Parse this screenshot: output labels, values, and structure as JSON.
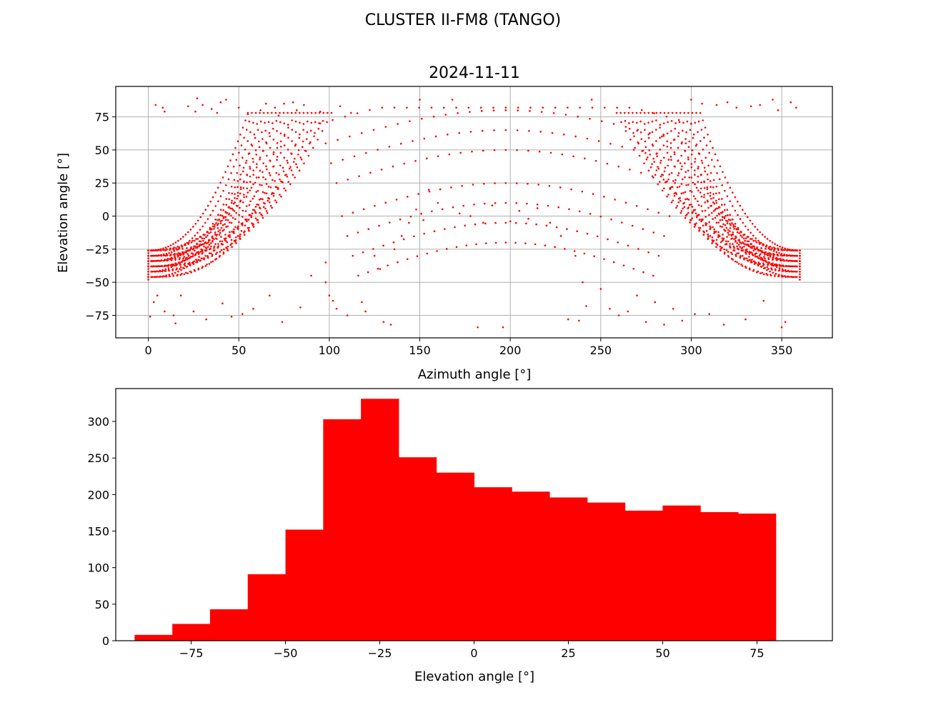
{
  "figure": {
    "suptitle": "CLUSTER II-FM8 (TANGO)"
  },
  "chart_data": [
    {
      "type": "scatter",
      "title": "2024-11-11",
      "xlabel": "Azimuth angle [°]",
      "ylabel": "Elevation angle [°]",
      "xlim": [
        -18,
        378
      ],
      "ylim": [
        -92,
        98
      ],
      "xticks": [
        0,
        50,
        100,
        150,
        200,
        250,
        300,
        350
      ],
      "yticks": [
        -75,
        -50,
        -25,
        0,
        25,
        50,
        75
      ],
      "xtick_labels": [
        "0",
        "50",
        "100",
        "150",
        "200",
        "250",
        "300",
        "350"
      ],
      "ytick_labels": [
        "−75",
        "−50",
        "−25",
        "0",
        "25",
        "50",
        "75"
      ],
      "grid": true,
      "marker_color": "#ff0000",
      "series": [
        {
          "points": [
            [
              0,
              -28
            ],
            [
              0,
              -32
            ],
            [
              0,
              -36
            ],
            [
              0,
              -40
            ],
            [
              0,
              -44
            ],
            [
              0,
              -48
            ],
            [
              1,
              -76
            ],
            [
              3,
              -65
            ],
            [
              4,
              84
            ],
            [
              5,
              -60
            ],
            [
              8,
              82
            ],
            [
              9,
              79
            ],
            [
              9,
              -72
            ],
            [
              14,
              -75
            ],
            [
              15,
              -81
            ],
            [
              18,
              -60
            ],
            [
              22,
              83
            ],
            [
              25,
              -72
            ],
            [
              26,
              79
            ],
            [
              27,
              89
            ],
            [
              30,
              84
            ],
            [
              32,
              -78
            ],
            [
              35,
              81
            ],
            [
              38,
              78
            ],
            [
              40,
              86
            ],
            [
              41,
              -66
            ],
            [
              43,
              88
            ],
            [
              46,
              -76
            ],
            [
              50,
              82
            ],
            [
              52,
              -74
            ],
            [
              55,
              77
            ],
            [
              58,
              -70
            ],
            [
              62,
              80
            ],
            [
              65,
              85
            ],
            [
              67,
              -60
            ],
            [
              70,
              82
            ],
            [
              72,
              76
            ],
            [
              74,
              -80
            ],
            [
              75,
              85
            ],
            [
              80,
              86
            ],
            [
              82,
              80
            ],
            [
              84,
              -69
            ],
            [
              86,
              84
            ],
            [
              90,
              -45
            ],
            [
              95,
              79
            ],
            [
              98,
              -35
            ],
            [
              98,
              -50
            ],
            [
              100,
              -60
            ],
            [
              102,
              -64
            ],
            [
              104,
              -70
            ],
            [
              106,
              83
            ],
            [
              110,
              -75
            ],
            [
              112,
              78
            ],
            [
              118,
              -65
            ],
            [
              120,
              -72
            ],
            [
              125,
              -30
            ],
            [
              128,
              -40
            ],
            [
              130,
              -80
            ],
            [
              134,
              -82
            ],
            [
              136,
              -25
            ],
            [
              140,
              -15
            ],
            [
              144,
              -5
            ],
            [
              148,
              5
            ],
            [
              150,
              88
            ],
            [
              152,
              -3
            ],
            [
              155,
              20
            ],
            [
              160,
              10
            ],
            [
              168,
              88
            ],
            [
              172,
              2
            ],
            [
              178,
              0
            ],
            [
              182,
              -84
            ],
            [
              185,
              -5
            ],
            [
              190,
              8
            ],
            [
              196,
              -84
            ],
            [
              200,
              -4
            ],
            [
              205,
              4
            ],
            [
              210,
              -2
            ],
            [
              215,
              6
            ],
            [
              222,
              -5
            ],
            [
              228,
              -15
            ],
            [
              232,
              -78
            ],
            [
              236,
              -30
            ],
            [
              238,
              -79
            ],
            [
              240,
              -50
            ],
            [
              242,
              -68
            ],
            [
              245,
              88
            ],
            [
              250,
              -55
            ],
            [
              255,
              -70
            ],
            [
              260,
              -75
            ],
            [
              265,
              -72
            ],
            [
              270,
              -60
            ],
            [
              275,
              -80
            ],
            [
              280,
              -65
            ],
            [
              285,
              -82
            ],
            [
              290,
              -70
            ],
            [
              295,
              -79
            ],
            [
              300,
              88
            ],
            [
              302,
              -74
            ],
            [
              306,
              85
            ],
            [
              310,
              -74
            ],
            [
              314,
              84
            ],
            [
              318,
              -82
            ],
            [
              320,
              86
            ],
            [
              325,
              82
            ],
            [
              330,
              -78
            ],
            [
              333,
              83
            ],
            [
              338,
              84
            ],
            [
              340,
              -64
            ],
            [
              345,
              88
            ],
            [
              348,
              80
            ],
            [
              350,
              -84
            ],
            [
              352,
              -80
            ],
            [
              355,
              86
            ],
            [
              358,
              82
            ],
            [
              360,
              -28
            ],
            [
              360,
              -32
            ],
            [
              360,
              -36
            ],
            [
              360,
              -40
            ],
            [
              360,
              -44
            ],
            [
              360,
              -48
            ]
          ]
        }
      ]
    },
    {
      "type": "bar",
      "xlabel": "Elevation angle [°]",
      "ylabel": "",
      "xlim": [
        -95,
        95
      ],
      "ylim": [
        0,
        345
      ],
      "xticks": [
        -75,
        -50,
        -25,
        0,
        25,
        50,
        75
      ],
      "yticks": [
        0,
        50,
        100,
        150,
        200,
        250,
        300
      ],
      "xtick_labels": [
        "−75",
        "−50",
        "−25",
        "0",
        "25",
        "50",
        "75"
      ],
      "ytick_labels": [
        "0",
        "50",
        "100",
        "150",
        "200",
        "250",
        "300"
      ],
      "grid": false,
      "bar_color": "#ff0000",
      "bin_edges": [
        -90,
        -80,
        -70,
        -60,
        -50,
        -40,
        -30,
        -20,
        -10,
        0,
        10,
        20,
        30,
        40,
        50,
        60,
        70,
        80
      ],
      "values": [
        8,
        23,
        43,
        91,
        152,
        303,
        331,
        251,
        230,
        210,
        204,
        196,
        189,
        178,
        185,
        176,
        174
      ]
    }
  ]
}
